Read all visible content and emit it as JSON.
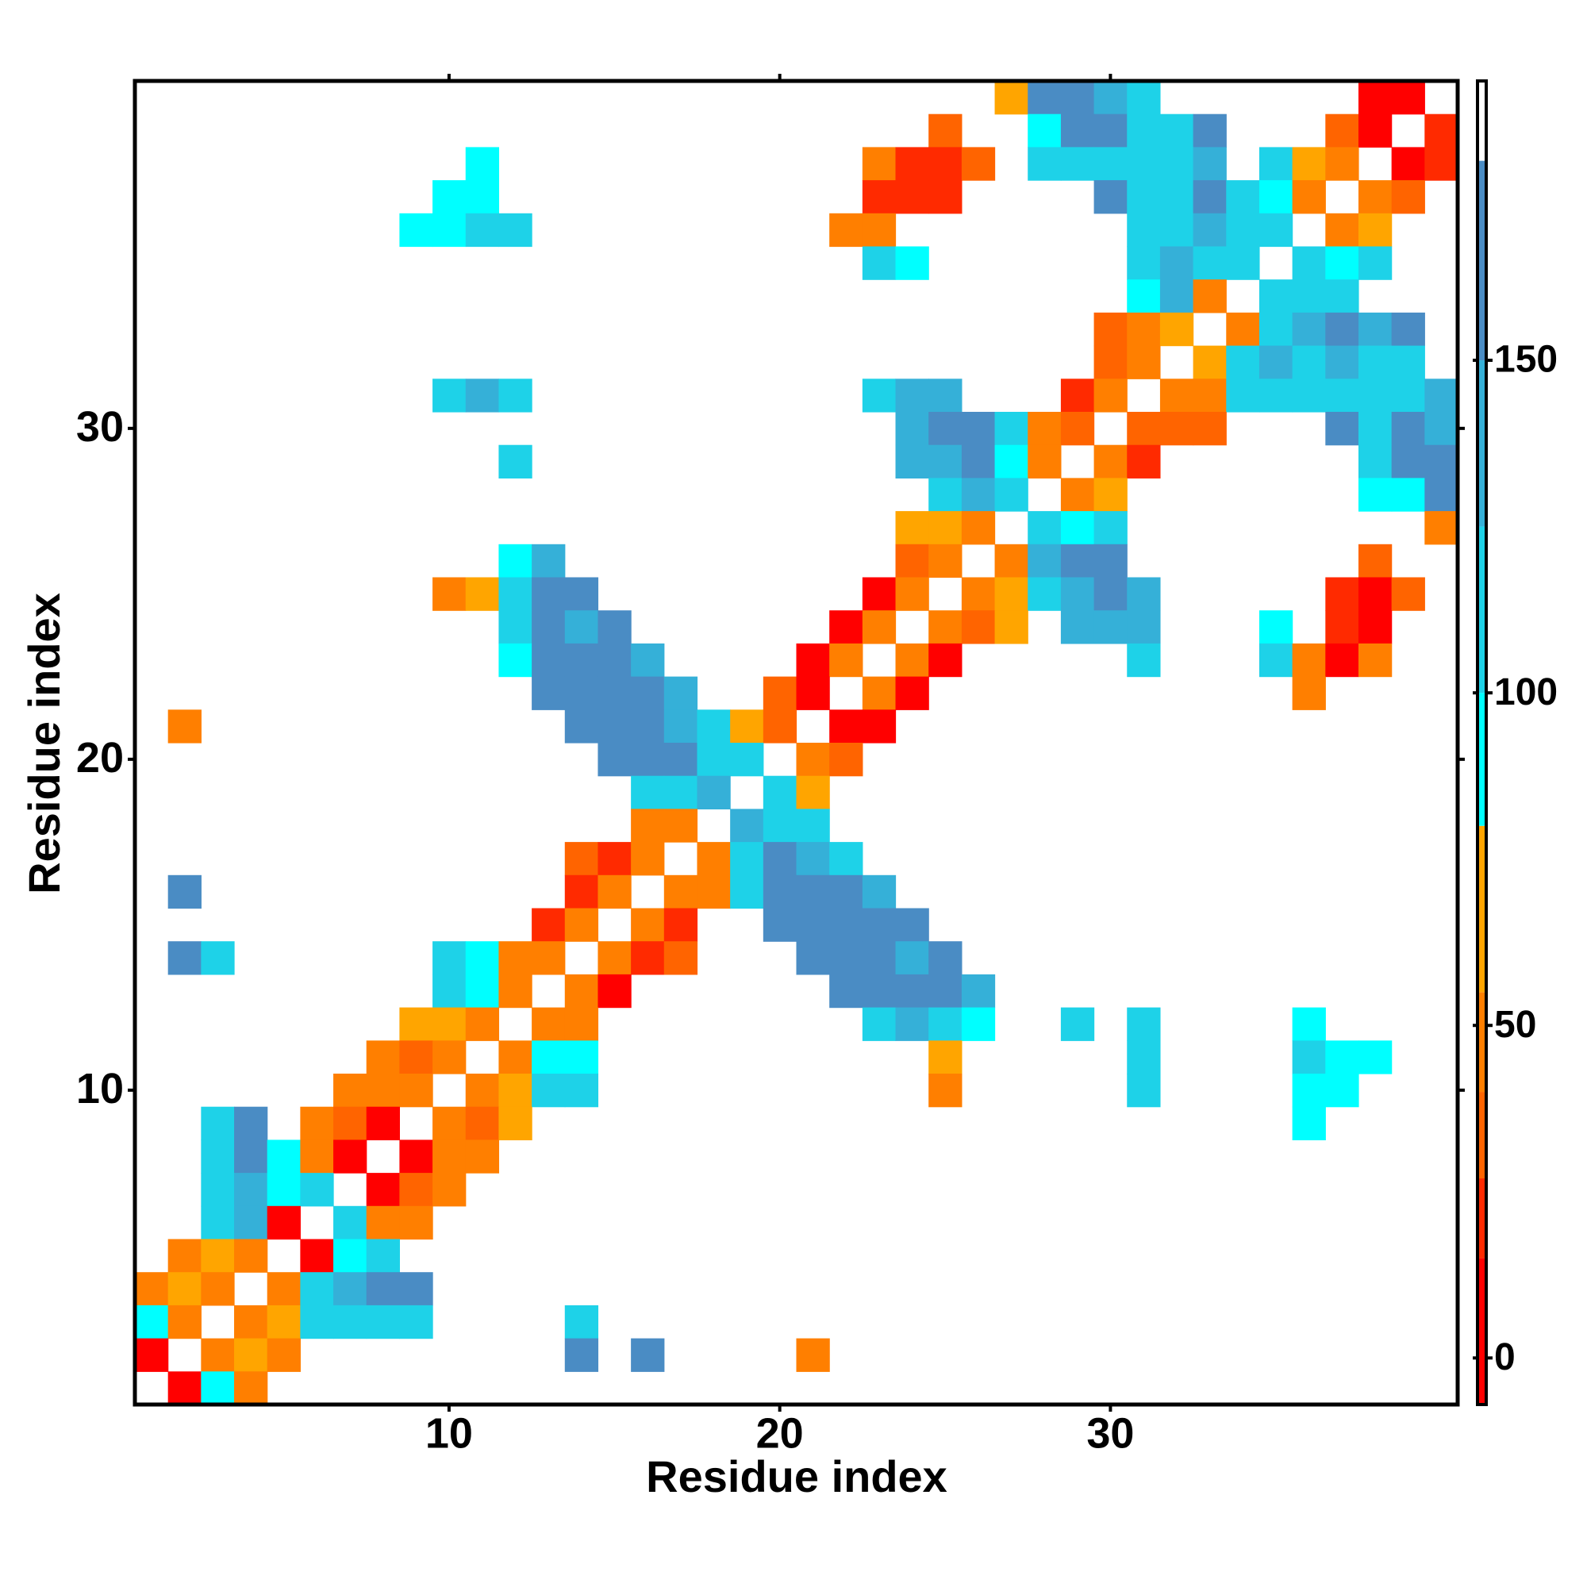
{
  "chart_data": {
    "type": "heatmap",
    "x_label": "Residue index",
    "y_label": "Residue index",
    "xlim": [
      0.5,
      40.5
    ],
    "ylim": [
      0.5,
      40.5
    ],
    "xticks": [
      10,
      20,
      30
    ],
    "yticks": [
      10,
      20,
      30
    ],
    "colorscale": {
      "bounds": [
        -7,
        15,
        27,
        40,
        55,
        80,
        100,
        125,
        150,
        180,
        192
      ],
      "colors": [
        "#ff0000",
        "#ff2a00",
        "#ff6400",
        "#ff7f00",
        "#ffa500",
        "#00ffff",
        "#1ed2e8",
        "#35b0d8",
        "#4a8cc4",
        "#ffffff"
      ]
    },
    "zticks": [
      0,
      50,
      100,
      150
    ],
    "rows": [
      {
        "y": 40,
        "x": [
          27,
          28,
          29,
          30,
          31,
          38,
          39
        ],
        "values": [
          65,
          160,
          160,
          135,
          115,
          10,
          10
        ]
      },
      {
        "y": 39,
        "x": [
          25,
          28,
          29,
          30,
          31,
          32,
          33,
          37,
          38,
          40
        ],
        "values": [
          35,
          90,
          160,
          160,
          115,
          115,
          160,
          35,
          10,
          20
        ]
      },
      {
        "y": 38,
        "x": [
          11,
          23,
          24,
          25,
          26,
          28,
          29,
          30,
          31,
          32,
          33,
          35,
          36,
          37,
          39,
          40
        ],
        "values": [
          90,
          45,
          20,
          20,
          35,
          115,
          115,
          115,
          115,
          115,
          135,
          115,
          65,
          45,
          10,
          20
        ]
      },
      {
        "y": 37,
        "x": [
          10,
          11,
          23,
          24,
          25,
          30,
          31,
          32,
          33,
          34,
          35,
          36,
          38,
          39
        ],
        "values": [
          90,
          90,
          20,
          20,
          20,
          160,
          115,
          115,
          160,
          115,
          90,
          45,
          45,
          35
        ]
      },
      {
        "y": 36,
        "x": [
          9,
          10,
          11,
          12,
          22,
          23,
          31,
          32,
          33,
          34,
          35,
          37,
          38
        ],
        "values": [
          90,
          90,
          115,
          115,
          45,
          45,
          115,
          115,
          135,
          115,
          115,
          45,
          65
        ]
      },
      {
        "y": 35,
        "x": [
          23,
          24,
          31,
          32,
          33,
          34,
          36,
          37,
          38
        ],
        "values": [
          115,
          90,
          115,
          135,
          115,
          115,
          115,
          90,
          115
        ]
      },
      {
        "y": 34,
        "x": [
          31,
          32,
          33,
          35,
          36,
          37
        ],
        "values": [
          90,
          135,
          45,
          115,
          115,
          115
        ]
      },
      {
        "y": 33,
        "x": [
          30,
          31,
          32,
          34,
          35,
          36,
          37,
          38,
          39
        ],
        "values": [
          35,
          45,
          65,
          45,
          115,
          135,
          160,
          135,
          160
        ]
      },
      {
        "y": 32,
        "x": [
          30,
          31,
          33,
          34,
          35,
          36,
          37,
          38,
          39
        ],
        "values": [
          35,
          45,
          65,
          115,
          135,
          115,
          135,
          115,
          115
        ]
      },
      {
        "y": 31,
        "x": [
          10,
          11,
          12,
          23,
          24,
          25,
          29,
          30,
          32,
          33,
          34,
          35,
          36,
          37,
          38,
          39,
          40
        ],
        "values": [
          115,
          135,
          115,
          115,
          135,
          135,
          20,
          45,
          45,
          45,
          115,
          115,
          115,
          115,
          115,
          115,
          135
        ]
      },
      {
        "y": 30,
        "x": [
          24,
          25,
          26,
          27,
          28,
          29,
          31,
          32,
          33,
          37,
          38,
          39,
          40
        ],
        "values": [
          135,
          160,
          160,
          115,
          45,
          35,
          35,
          35,
          35,
          160,
          115,
          160,
          135
        ]
      },
      {
        "y": 29,
        "x": [
          12,
          24,
          25,
          26,
          27,
          28,
          30,
          31,
          38,
          39,
          40
        ],
        "values": [
          115,
          135,
          135,
          160,
          90,
          45,
          45,
          20,
          115,
          160,
          160
        ]
      },
      {
        "y": 28,
        "x": [
          25,
          26,
          27,
          29,
          30,
          38,
          39,
          40
        ],
        "values": [
          115,
          135,
          115,
          45,
          65,
          90,
          90,
          160
        ]
      },
      {
        "y": 27,
        "x": [
          24,
          25,
          26,
          28,
          29,
          30,
          40
        ],
        "values": [
          65,
          65,
          45,
          115,
          90,
          115,
          45
        ]
      },
      {
        "y": 26,
        "x": [
          12,
          13,
          24,
          25,
          27,
          28,
          29,
          30,
          38
        ],
        "values": [
          90,
          135,
          35,
          45,
          45,
          135,
          160,
          160,
          35
        ]
      },
      {
        "y": 25,
        "x": [
          10,
          11,
          12,
          13,
          14,
          23,
          24,
          26,
          27,
          28,
          29,
          30,
          31,
          37,
          38,
          39
        ],
        "values": [
          45,
          65,
          115,
          160,
          160,
          10,
          45,
          45,
          65,
          115,
          135,
          160,
          135,
          20,
          10,
          35
        ]
      },
      {
        "y": 24,
        "x": [
          12,
          13,
          14,
          15,
          22,
          23,
          25,
          26,
          27,
          29,
          30,
          31,
          35,
          37,
          38
        ],
        "values": [
          115,
          160,
          135,
          160,
          10,
          45,
          45,
          35,
          65,
          135,
          135,
          135,
          90,
          20,
          10
        ]
      },
      {
        "y": 23,
        "x": [
          12,
          13,
          14,
          15,
          16,
          21,
          22,
          24,
          25,
          31,
          35,
          36,
          37,
          38
        ],
        "values": [
          90,
          160,
          160,
          160,
          135,
          10,
          45,
          45,
          10,
          115,
          115,
          45,
          10,
          45
        ]
      },
      {
        "y": 22,
        "x": [
          13,
          14,
          15,
          16,
          17,
          20,
          21,
          23,
          24,
          36
        ],
        "values": [
          160,
          160,
          160,
          160,
          135,
          35,
          10,
          45,
          10,
          45
        ]
      },
      {
        "y": 21,
        "x": [
          2,
          14,
          15,
          16,
          17,
          18,
          19,
          20,
          22,
          23
        ],
        "values": [
          45,
          160,
          160,
          160,
          135,
          115,
          65,
          35,
          10,
          10
        ]
      },
      {
        "y": 20,
        "x": [
          15,
          16,
          17,
          18,
          19,
          21,
          22
        ],
        "values": [
          160,
          160,
          160,
          115,
          115,
          45,
          35
        ]
      },
      {
        "y": 19,
        "x": [
          16,
          17,
          18,
          20,
          21
        ],
        "values": [
          115,
          115,
          135,
          115,
          65
        ]
      },
      {
        "y": 18,
        "x": [
          16,
          17,
          19,
          20,
          21
        ],
        "values": [
          45,
          45,
          135,
          115,
          115
        ]
      },
      {
        "y": 17,
        "x": [
          14,
          15,
          16,
          18,
          19,
          20,
          21,
          22
        ],
        "values": [
          35,
          20,
          45,
          45,
          115,
          160,
          135,
          115
        ]
      },
      {
        "y": 16,
        "x": [
          2,
          14,
          15,
          17,
          18,
          19,
          20,
          21,
          22,
          23
        ],
        "values": [
          160,
          20,
          45,
          45,
          45,
          115,
          160,
          160,
          160,
          135
        ]
      },
      {
        "y": 15,
        "x": [
          13,
          14,
          16,
          17,
          20,
          21,
          22,
          23,
          24
        ],
        "values": [
          20,
          45,
          45,
          20,
          160,
          160,
          160,
          160,
          160
        ]
      },
      {
        "y": 14,
        "x": [
          2,
          3,
          10,
          11,
          12,
          13,
          15,
          16,
          17,
          21,
          22,
          23,
          24,
          25
        ],
        "values": [
          160,
          115,
          115,
          90,
          45,
          45,
          45,
          20,
          35,
          160,
          160,
          160,
          135,
          160
        ]
      },
      {
        "y": 13,
        "x": [
          10,
          11,
          12,
          14,
          15,
          22,
          23,
          24,
          25,
          26
        ],
        "values": [
          115,
          90,
          45,
          45,
          10,
          160,
          160,
          160,
          160,
          135
        ]
      },
      {
        "y": 12,
        "x": [
          9,
          10,
          11,
          13,
          14,
          23,
          24,
          25,
          26,
          29,
          31,
          36
        ],
        "values": [
          65,
          65,
          45,
          45,
          45,
          115,
          135,
          115,
          90,
          115,
          115,
          90
        ]
      },
      {
        "y": 11,
        "x": [
          8,
          9,
          10,
          12,
          13,
          14,
          25,
          31,
          36,
          37,
          38
        ],
        "values": [
          45,
          35,
          45,
          45,
          90,
          90,
          65,
          115,
          115,
          90,
          90
        ]
      },
      {
        "y": 10,
        "x": [
          7,
          8,
          9,
          11,
          12,
          13,
          14,
          25,
          31,
          36,
          37
        ],
        "values": [
          45,
          45,
          45,
          45,
          65,
          115,
          115,
          45,
          115,
          90,
          90
        ]
      },
      {
        "y": 9,
        "x": [
          3,
          4,
          6,
          7,
          8,
          10,
          11,
          12,
          36
        ],
        "values": [
          115,
          160,
          45,
          35,
          10,
          45,
          35,
          65,
          90
        ]
      },
      {
        "y": 8,
        "x": [
          3,
          4,
          5,
          6,
          7,
          9,
          10,
          11
        ],
        "values": [
          115,
          160,
          90,
          45,
          10,
          10,
          45,
          45
        ]
      },
      {
        "y": 7,
        "x": [
          3,
          4,
          5,
          6,
          8,
          9,
          10
        ],
        "values": [
          115,
          135,
          90,
          115,
          10,
          35,
          45
        ]
      },
      {
        "y": 6,
        "x": [
          3,
          4,
          5,
          7,
          8,
          9
        ],
        "values": [
          115,
          135,
          10,
          115,
          45,
          45
        ]
      },
      {
        "y": 5,
        "x": [
          2,
          3,
          4,
          6,
          7,
          8
        ],
        "values": [
          45,
          65,
          45,
          10,
          90,
          115
        ]
      },
      {
        "y": 4,
        "x": [
          1,
          2,
          3,
          5,
          6,
          7,
          8,
          9
        ],
        "values": [
          45,
          65,
          45,
          45,
          115,
          135,
          160,
          160
        ]
      },
      {
        "y": 3,
        "x": [
          1,
          2,
          4,
          5,
          6,
          7,
          8,
          9,
          14
        ],
        "values": [
          90,
          45,
          45,
          65,
          115,
          115,
          115,
          115,
          115
        ]
      },
      {
        "y": 2,
        "x": [
          1,
          3,
          4,
          5,
          14,
          16,
          21
        ],
        "values": [
          10,
          45,
          65,
          45,
          160,
          160,
          45
        ]
      },
      {
        "y": 1,
        "x": [
          2,
          3,
          4
        ],
        "values": [
          10,
          90,
          45
        ]
      }
    ]
  }
}
